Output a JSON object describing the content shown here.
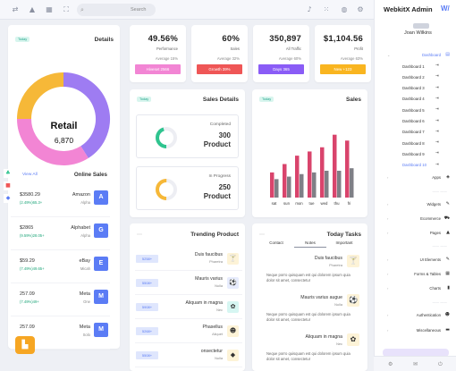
{
  "topbar": {
    "search_placeholder": "Search"
  },
  "sidebar": {
    "brand": "WebkitX Admin",
    "brand_mark": "W/",
    "user_name": "Joan Wilkins",
    "items": {
      "dashboard": "Dashboard",
      "apps": "Apps",
      "widgets": "Widgets",
      "ecommerce": "Ecommerce",
      "pages": "Pages",
      "ui_elements": "UI Elements",
      "forms_tables": "Forms & Tables",
      "charts": "Charts",
      "authentication": "Authentication",
      "miscellaneous": "Miscellaneous"
    },
    "dashboards": [
      "Dashboard 1",
      "Dashboard 2",
      "Dashboard 3",
      "Dashboard 4",
      "Dashboard 5",
      "Dashboard 6",
      "Dashboard 7",
      "Dashboard 8",
      "Dashboard 9",
      "Dashboard 10"
    ]
  },
  "details": {
    "pill": "Today",
    "title": "Details",
    "center_title": "Retail",
    "center_value": "6,870",
    "segments": [
      {
        "value": 0.41,
        "color": "#9e7cf2"
      },
      {
        "value": 0.34,
        "color": "#f285d4"
      },
      {
        "value": 0.25,
        "color": "#f6b838"
      }
    ],
    "view_all": "View All",
    "online_sales": "Online Sales",
    "sales": [
      {
        "amount": "$3580.29",
        "pct": "(2.49%)65.3+",
        "name": "Amazon",
        "sub": "Alpha",
        "badge": "A"
      },
      {
        "amount": "$2865",
        "pct": "(9.59%)28.05+",
        "name": "Alphabet",
        "sub": "Alpha",
        "badge": "G"
      },
      {
        "amount": "$59.29",
        "pct": "(7.49%)49.65+",
        "name": "eBay",
        "sub": "Micah",
        "badge": "E"
      },
      {
        "amount": "257.09",
        "pct": "(7.49%)49+",
        "name": "Meta",
        "sub": "One",
        "badge": "M"
      },
      {
        "amount": "257.09",
        "pct": "",
        "name": "Meta",
        "sub": "Solo",
        "badge": "M"
      }
    ]
  },
  "stats": [
    {
      "value": "49.56%",
      "label": "Performance",
      "avg": "Average 15%",
      "button": "Hiveset 2566",
      "color": "#f285d4"
    },
    {
      "value": "60%",
      "label": "Sales",
      "avg": "Average 32%",
      "button": "Growth 39%",
      "color": "#ef5656"
    },
    {
      "value": "350,897",
      "label": "All Traffic",
      "avg": "Average 60%",
      "button": "Days 365",
      "color": "#8a5cf6"
    },
    {
      "value": "$1,104.56",
      "label": "Profit",
      "avg": "Average 63%",
      "button": "New +123",
      "color": "#f9b520"
    }
  ],
  "sales_details": {
    "pill": "Today",
    "title": "Sales Details",
    "items": [
      {
        "label": "Completed",
        "value": "300",
        "unit": "Product",
        "color": "#2fc48f",
        "fraction": 0.45
      },
      {
        "label": "In Progress",
        "value": "250",
        "unit": "Product",
        "color": "#f6b838",
        "fraction": 0.5
      }
    ]
  },
  "sales_chart": {
    "pill": "Today",
    "title": "Sales"
  },
  "chart_data": {
    "type": "bar",
    "categories": [
      "sat",
      "sun",
      "mon",
      "tue",
      "wed",
      "thu",
      "fri"
    ],
    "series": [
      {
        "values": [
          30,
          40,
          50,
          55,
          60,
          75,
          68
        ],
        "color": "#d9446c"
      },
      {
        "values": [
          22,
          25,
          28,
          30,
          32,
          32,
          35
        ],
        "color": "#7f7f86"
      }
    ],
    "ylim": [
      0,
      80
    ]
  },
  "trending": {
    "title": "Trending Product",
    "items": [
      {
        "pill": "5258+",
        "name": "Duis faucibus",
        "sub": "Pharetra",
        "icon": "🍸",
        "bg": "#fdf3d7"
      },
      {
        "pill": "5508+",
        "name": "Mauris varius",
        "sub": "Nulla",
        "icon": "⚽",
        "bg": "#e7ecfd"
      },
      {
        "pill": "5908+",
        "name": "Aliquam in magna",
        "sub": "Nec",
        "icon": "✿",
        "bg": "#d6f6f2"
      },
      {
        "pill": "5268+",
        "name": "Phasellus",
        "sub": "Aliquet",
        "icon": "☻",
        "bg": "#fdf3d7"
      },
      {
        "pill": "5508+",
        "name": "onsectetur",
        "sub": "Nulla",
        "icon": "◆",
        "bg": "#fdf3d7"
      }
    ]
  },
  "tasks": {
    "title": "Today Tasks",
    "tabs": [
      "Contact",
      "Notes",
      "Important"
    ],
    "items": [
      {
        "name": "Duis faucibus",
        "sub": "Pharetra",
        "desc": "Neque porro quisquam est qui dolorem ipsum quia dolor sit amet, consectetur",
        "icon": "🍸"
      },
      {
        "name": "Mauris varius augue",
        "sub": "Nulla",
        "desc": "Neque porro quisquam est qui dolorem ipsum quia dolor sit amet, consectetur",
        "icon": "⚽"
      },
      {
        "name": "Aliquam in magna",
        "sub": "Nec",
        "desc": "Neque porro quisquam est qui dolorem ipsum quia dolor sit amet, consectetur",
        "icon": "✿"
      }
    ]
  }
}
